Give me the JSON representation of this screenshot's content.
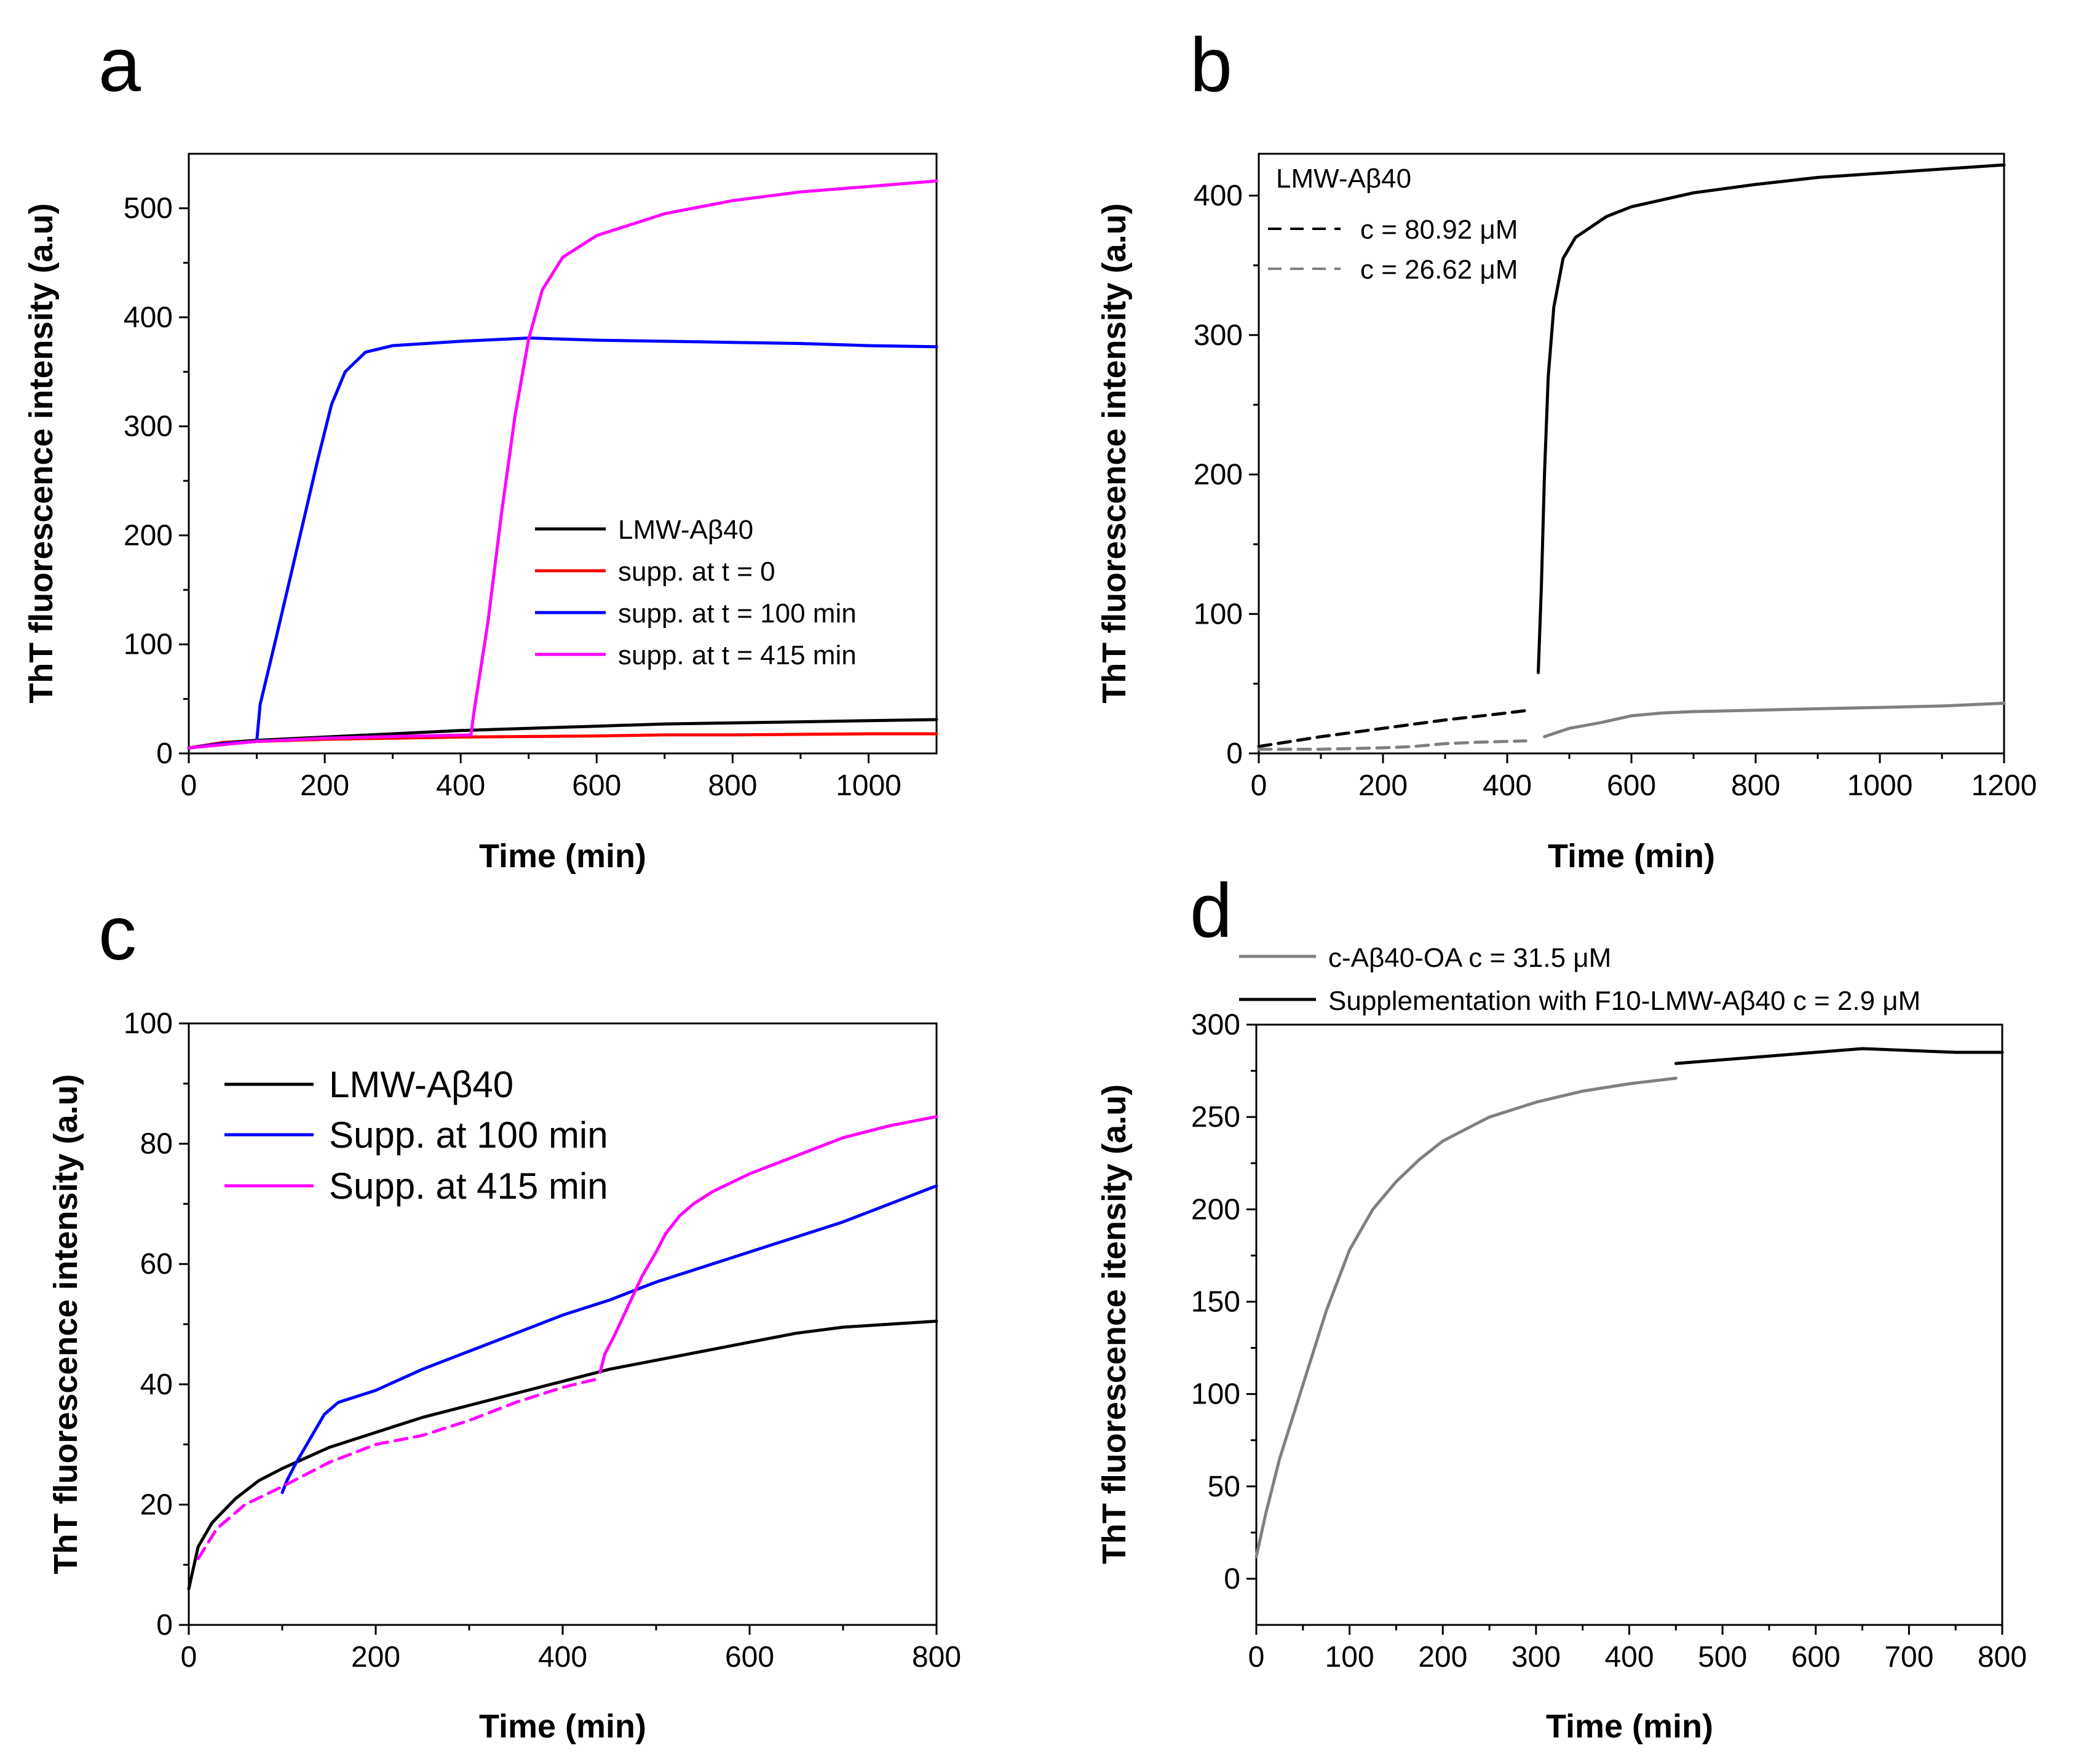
{
  "colors": {
    "black": "#000000",
    "red": "#ff0000",
    "blue": "#0000ff",
    "magenta": "#ff00ff",
    "gray": "#808080"
  },
  "chart_data": [
    {
      "panel": "a",
      "type": "line",
      "xlabel": "Time (min)",
      "ylabel": "ThT fluorescence intensity (a.u)",
      "xlim": [
        0,
        1100
      ],
      "ylim": [
        0,
        550
      ],
      "xticks": [
        0,
        200,
        400,
        600,
        800,
        1000
      ],
      "yticks": [
        0,
        100,
        200,
        300,
        400,
        500
      ],
      "legend_position": "center-right",
      "series": [
        {
          "name": "LMW-Aβ40",
          "color": "#000000",
          "dashed": false,
          "points": [
            [
              0,
              5
            ],
            [
              50,
              10
            ],
            [
              100,
              12
            ],
            [
              200,
              15
            ],
            [
              300,
              18
            ],
            [
              400,
              21
            ],
            [
              500,
              23
            ],
            [
              600,
              25
            ],
            [
              700,
              27
            ],
            [
              800,
              28
            ],
            [
              900,
              29
            ],
            [
              1000,
              30
            ],
            [
              1100,
              31
            ]
          ]
        },
        {
          "name": "supp. at t = 0",
          "color": "#ff0000",
          "dashed": false,
          "points": [
            [
              0,
              5
            ],
            [
              50,
              10
            ],
            [
              100,
              11
            ],
            [
              200,
              13
            ],
            [
              300,
              14
            ],
            [
              400,
              15
            ],
            [
              500,
              15.5
            ],
            [
              600,
              16
            ],
            [
              700,
              17
            ],
            [
              800,
              17
            ],
            [
              900,
              17.5
            ],
            [
              1000,
              18
            ],
            [
              1100,
              18
            ]
          ]
        },
        {
          "name": "supp. at t = 100 min",
          "color": "#0000ff",
          "dashed": false,
          "points": [
            [
              0,
              5
            ],
            [
              50,
              9
            ],
            [
              100,
              11
            ],
            [
              105,
              45
            ],
            [
              130,
              110
            ],
            [
              160,
              190
            ],
            [
              190,
              270
            ],
            [
              210,
              320
            ],
            [
              230,
              350
            ],
            [
              260,
              368
            ],
            [
              300,
              374
            ],
            [
              400,
              378
            ],
            [
              500,
              381
            ],
            [
              600,
              379
            ],
            [
              700,
              378
            ],
            [
              800,
              377
            ],
            [
              900,
              376
            ],
            [
              1000,
              374
            ],
            [
              1100,
              373
            ]
          ]
        },
        {
          "name": "supp. at t = 415 min",
          "color": "#ff00ff",
          "dashed": false,
          "points": [
            [
              0,
              5
            ],
            [
              100,
              11
            ],
            [
              200,
              14
            ],
            [
              300,
              15.5
            ],
            [
              415,
              17
            ],
            [
              420,
              40
            ],
            [
              440,
              120
            ],
            [
              460,
              220
            ],
            [
              480,
              310
            ],
            [
              500,
              380
            ],
            [
              520,
              425
            ],
            [
              550,
              455
            ],
            [
              600,
              475
            ],
            [
              700,
              495
            ],
            [
              800,
              507
            ],
            [
              900,
              515
            ],
            [
              1000,
              520
            ],
            [
              1100,
              525
            ]
          ]
        }
      ]
    },
    {
      "panel": "b",
      "type": "line",
      "xlabel": "Time (min)",
      "ylabel": "ThT fluorescence intensity (a.u)",
      "xlim": [
        0,
        1200
      ],
      "ylim": [
        0,
        430
      ],
      "xticks": [
        0,
        200,
        400,
        600,
        800,
        1000,
        1200
      ],
      "yticks": [
        0,
        100,
        200,
        300,
        400
      ],
      "legend_position": "top-left",
      "legend_title": "LMW-Aβ40",
      "series": [
        {
          "name": "c = 80.92 μM",
          "color": "#000000",
          "dashed": true,
          "points": [
            [
              0,
              5
            ],
            [
              100,
              12
            ],
            [
              200,
              18
            ],
            [
              300,
              24
            ],
            [
              400,
              29
            ],
            [
              435,
              31
            ]
          ]
        },
        {
          "name": "c = 80.92 μM (solid)",
          "color": "#000000",
          "dashed": false,
          "legend": false,
          "points": [
            [
              450,
              58
            ],
            [
              455,
              120
            ],
            [
              460,
              200
            ],
            [
              466,
              270
            ],
            [
              475,
              320
            ],
            [
              490,
              355
            ],
            [
              510,
              370
            ],
            [
              560,
              385
            ],
            [
              600,
              392
            ],
            [
              700,
              402
            ],
            [
              800,
              408
            ],
            [
              900,
              413
            ],
            [
              1000,
              416
            ],
            [
              1100,
              419
            ],
            [
              1200,
              422
            ]
          ]
        },
        {
          "name": "c = 26.62 μM",
          "color": "#808080",
          "dashed": true,
          "points": [
            [
              0,
              3
            ],
            [
              100,
              3
            ],
            [
              200,
              4
            ],
            [
              250,
              5
            ],
            [
              300,
              7
            ],
            [
              350,
              8
            ],
            [
              430,
              9
            ]
          ]
        },
        {
          "name": "c = 26.62 μM (solid)",
          "color": "#808080",
          "dashed": false,
          "legend": false,
          "points": [
            [
              460,
              12
            ],
            [
              500,
              18
            ],
            [
              550,
              22
            ],
            [
              600,
              27
            ],
            [
              650,
              29
            ],
            [
              700,
              30
            ],
            [
              800,
              31
            ],
            [
              900,
              32
            ],
            [
              1000,
              33
            ],
            [
              1100,
              34
            ],
            [
              1200,
              36
            ]
          ]
        }
      ]
    },
    {
      "panel": "c",
      "type": "line",
      "xlabel": "Time (min)",
      "ylabel": "ThT fluorescence intensity (a.u)",
      "xlim": [
        0,
        800
      ],
      "ylim": [
        0,
        100
      ],
      "xticks": [
        0,
        200,
        400,
        600,
        800
      ],
      "yticks": [
        0,
        20,
        40,
        60,
        80,
        100
      ],
      "legend_position": "top-left",
      "series": [
        {
          "name": "LMW-Aβ40",
          "color": "#000000",
          "dashed": false,
          "points": [
            [
              0,
              6
            ],
            [
              10,
              13
            ],
            [
              25,
              17
            ],
            [
              50,
              21
            ],
            [
              75,
              24
            ],
            [
              100,
              26
            ],
            [
              150,
              29.5
            ],
            [
              200,
              32
            ],
            [
              250,
              34.5
            ],
            [
              300,
              36.5
            ],
            [
              350,
              38.5
            ],
            [
              400,
              40.5
            ],
            [
              450,
              42.5
            ],
            [
              500,
              44
            ],
            [
              550,
              45.5
            ],
            [
              600,
              47
            ],
            [
              650,
              48.5
            ],
            [
              700,
              49.5
            ],
            [
              750,
              50
            ],
            [
              800,
              50.5
            ]
          ]
        },
        {
          "name": "Supp. at 100 min",
          "color": "#0000ff",
          "dashed": false,
          "points": [
            [
              100,
              22
            ],
            [
              105,
              24
            ],
            [
              115,
              27
            ],
            [
              130,
              31
            ],
            [
              145,
              35
            ],
            [
              160,
              37
            ],
            [
              200,
              39
            ],
            [
              250,
              42.5
            ],
            [
              300,
              45.5
            ],
            [
              350,
              48.5
            ],
            [
              400,
              51.5
            ],
            [
              450,
              54
            ],
            [
              500,
              57
            ],
            [
              550,
              59.5
            ],
            [
              600,
              62
            ],
            [
              650,
              64.5
            ],
            [
              700,
              67
            ],
            [
              750,
              70
            ],
            [
              800,
              73
            ]
          ]
        },
        {
          "name": "Supp. at 415 min (dashed)",
          "color": "#ff00ff",
          "dashed": true,
          "legend": false,
          "points": [
            [
              10,
              11
            ],
            [
              30,
              16
            ],
            [
              60,
              20
            ],
            [
              100,
              23
            ],
            [
              150,
              27
            ],
            [
              200,
              30
            ],
            [
              250,
              31.5
            ],
            [
              300,
              34
            ],
            [
              350,
              37
            ],
            [
              400,
              39.5
            ],
            [
              440,
              41
            ]
          ]
        },
        {
          "name": "Supp. at 415 min",
          "color": "#ff00ff",
          "dashed": false,
          "points": [
            [
              440,
              42
            ],
            [
              445,
              45
            ],
            [
              455,
              48
            ],
            [
              470,
              53
            ],
            [
              485,
              58
            ],
            [
              500,
              62
            ],
            [
              510,
              65
            ],
            [
              525,
              68
            ],
            [
              540,
              70
            ],
            [
              560,
              72
            ],
            [
              600,
              75
            ],
            [
              650,
              78
            ],
            [
              700,
              81
            ],
            [
              750,
              83
            ],
            [
              800,
              84.5
            ]
          ]
        }
      ]
    },
    {
      "panel": "d",
      "type": "line",
      "xlabel": "Time (min)",
      "ylabel": "ThT fluorescence itensity (a.u)",
      "xlim": [
        0,
        800
      ],
      "ylim": [
        -25,
        300
      ],
      "xticks": [
        0,
        100,
        200,
        300,
        400,
        500,
        600,
        700,
        800
      ],
      "yticks": [
        0,
        50,
        100,
        150,
        200,
        250,
        300
      ],
      "legend_position": "above",
      "series": [
        {
          "name": "c-Aβ40-OA c = 31.5 μM",
          "color": "#808080",
          "dashed": false,
          "points": [
            [
              0,
              12
            ],
            [
              10,
              35
            ],
            [
              25,
              65
            ],
            [
              50,
              105
            ],
            [
              75,
              145
            ],
            [
              100,
              178
            ],
            [
              125,
              200
            ],
            [
              150,
              215
            ],
            [
              175,
              227
            ],
            [
              200,
              237
            ],
            [
              250,
              250
            ],
            [
              300,
              258
            ],
            [
              350,
              264
            ],
            [
              400,
              268
            ],
            [
              450,
              271
            ]
          ]
        },
        {
          "name": "Supplementation with F10-LMW-Aβ40 c = 2.9 μM",
          "color": "#000000",
          "dashed": false,
          "points": [
            [
              450,
              279
            ],
            [
              500,
              281
            ],
            [
              550,
              283
            ],
            [
              600,
              285
            ],
            [
              650,
              287
            ],
            [
              700,
              286
            ],
            [
              750,
              285
            ],
            [
              800,
              285
            ]
          ]
        }
      ]
    }
  ]
}
